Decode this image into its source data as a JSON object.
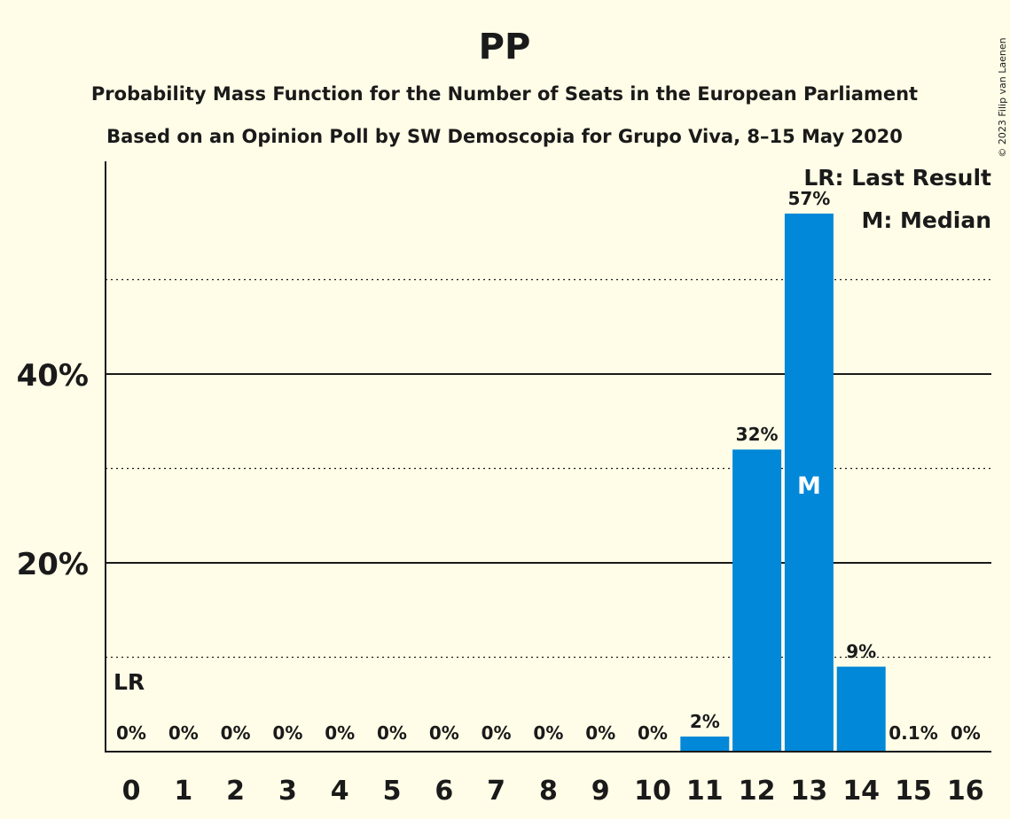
{
  "chart_data": {
    "type": "bar",
    "title": "PP",
    "subtitle_lines": [
      "Probability Mass Function for the Number of Seats in the European Parliament",
      "Based on an Opinion Poll by SW Demoscopia for Grupo Viva, 8–15 May 2020"
    ],
    "categories": [
      "0",
      "1",
      "2",
      "3",
      "4",
      "5",
      "6",
      "7",
      "8",
      "9",
      "10",
      "11",
      "12",
      "13",
      "14",
      "15",
      "16"
    ],
    "values": [
      0,
      0,
      0,
      0,
      0,
      0,
      0,
      0,
      0,
      0,
      0,
      1.6,
      32,
      57,
      9,
      0.1,
      0
    ],
    "value_labels": [
      "0%",
      "0%",
      "0%",
      "0%",
      "0%",
      "0%",
      "0%",
      "0%",
      "0%",
      "0%",
      "0%",
      "2%",
      "32%",
      "57%",
      "9%",
      "0.1%",
      "0%"
    ],
    "ylim": [
      0,
      62
    ],
    "y_major_ticks": [
      20,
      40
    ],
    "y_major_tick_labels": [
      "20%",
      "40%"
    ],
    "y_minor_gridlines": [
      10,
      30,
      50
    ],
    "last_result_seat": 0,
    "last_result_marker": "LR",
    "median_seat": 13,
    "median_marker": "M",
    "legend": [
      "LR: Last Result",
      "M: Median"
    ],
    "legend_position": "top-right",
    "bar_color": "#0288d8",
    "copyright": "© 2023 Filip van Laenen"
  }
}
